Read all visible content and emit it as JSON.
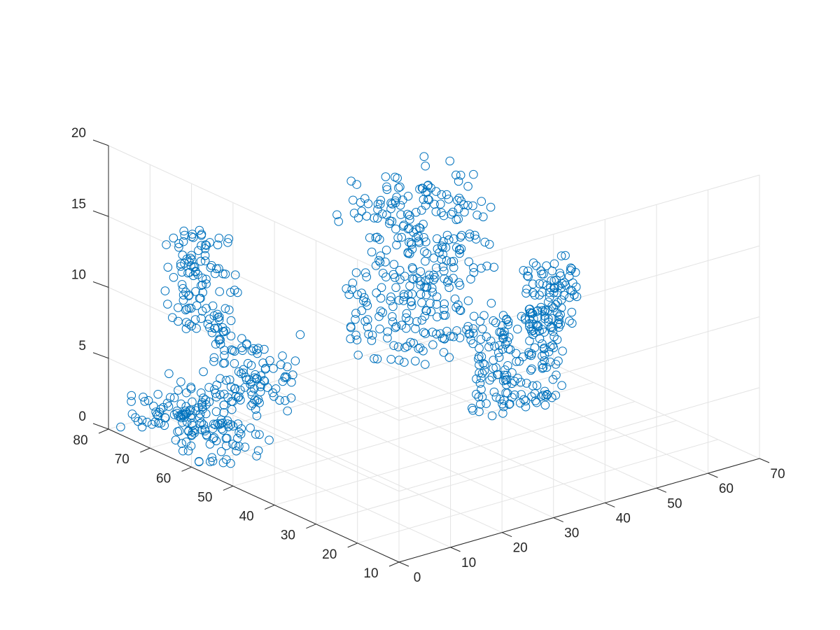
{
  "chart_data": {
    "type": "scatter",
    "title": "",
    "xlabel": "",
    "ylabel": "",
    "zlabel": "",
    "xlim": [
      0,
      70
    ],
    "ylim": [
      10,
      80
    ],
    "zlim": [
      0,
      20
    ],
    "x_ticks": [
      "0",
      "10",
      "20",
      "30",
      "40",
      "50",
      "60",
      "70"
    ],
    "y_ticks": [
      "10",
      "20",
      "30",
      "40",
      "50",
      "60",
      "70",
      "80"
    ],
    "z_ticks": [
      "0",
      "5",
      "10",
      "15",
      "20"
    ],
    "grid": true,
    "marker": "open-circle",
    "series_color": "#0072bd",
    "clusters": [
      {
        "x": [
          0,
          12
        ],
        "y": [
          55,
          80
        ],
        "z": [
          0,
          3
        ],
        "count": 150
      },
      {
        "x": [
          0,
          8
        ],
        "y": [
          44,
          58
        ],
        "z": [
          5,
          9
        ],
        "count": 100
      },
      {
        "x": [
          0,
          6
        ],
        "y": [
          54,
          68
        ],
        "z": [
          9,
          16
        ],
        "count": 120
      },
      {
        "x": [
          0,
          20
        ],
        "y": [
          10,
          26
        ],
        "z": [
          13,
          25
        ],
        "count": 330
      },
      {
        "x": [
          20,
          25
        ],
        "y": [
          10,
          14
        ],
        "z": [
          10,
          13
        ],
        "count": 12
      },
      {
        "x": [
          15,
          32
        ],
        "y": [
          10,
          12
        ],
        "z": [
          8,
          15
        ],
        "count": 160
      },
      {
        "x": [
          25,
          35
        ],
        "y": [
          10,
          12
        ],
        "z": [
          13,
          18
        ],
        "count": 90
      }
    ],
    "points": [
      [
        5,
        40,
        11.5
      ]
    ]
  }
}
